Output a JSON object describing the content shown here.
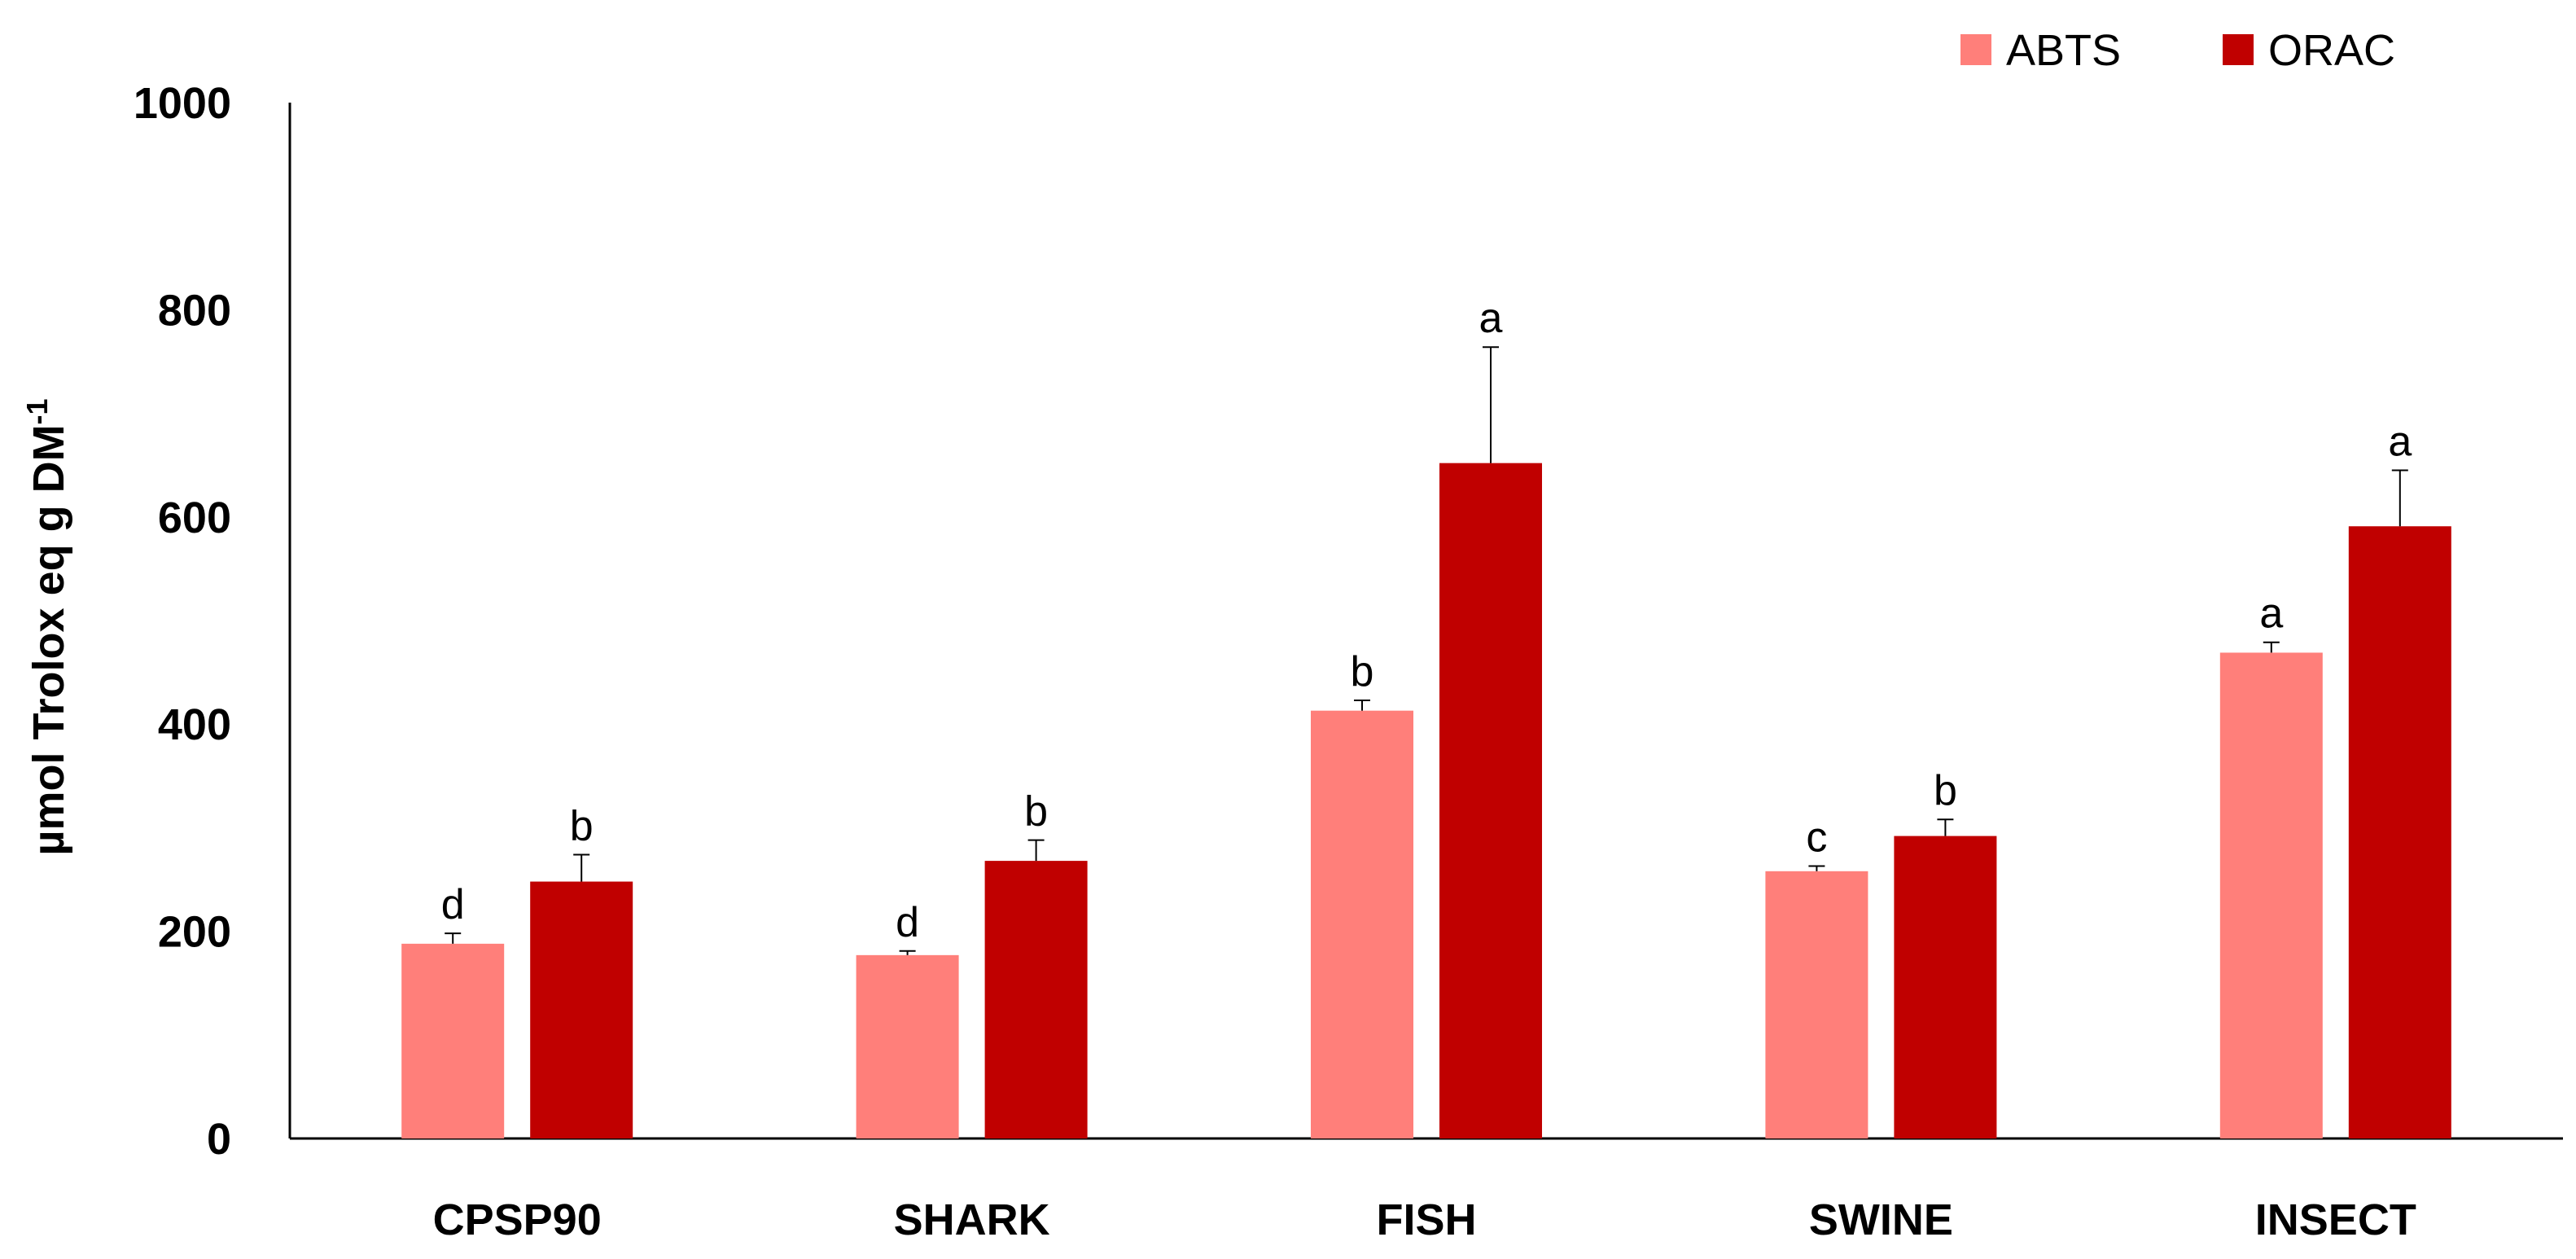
{
  "chart_data": {
    "type": "bar",
    "title": "",
    "xlabel": "",
    "ylabel": "µmol Trolox eq g DM",
    "ylabel_superscript": "-1",
    "ylim": [
      0,
      1000
    ],
    "yticks": [
      "0",
      "200",
      "400",
      "600",
      "800",
      "1000"
    ],
    "ytick_values": [
      0,
      200,
      400,
      600,
      800,
      1000
    ],
    "grid": false,
    "legend_position": "top-right",
    "categories": [
      "CPSP90",
      "SHARK",
      "FISH",
      "SWINE",
      "INSECT"
    ],
    "series": [
      {
        "name": "ABTS",
        "color": "#FF7F7A",
        "values": [
          188,
          177,
          413,
          258,
          469
        ],
        "errors": [
          10,
          4,
          10,
          5,
          10
        ],
        "letters": [
          "d",
          "d",
          "b",
          "c",
          "a"
        ]
      },
      {
        "name": "ORAC",
        "color": "#C00000",
        "values": [
          248,
          268,
          652,
          292,
          591
        ],
        "errors": [
          26,
          20,
          112,
          16,
          54
        ],
        "letters": [
          "b",
          "b",
          "a",
          "b",
          "a"
        ]
      }
    ]
  }
}
